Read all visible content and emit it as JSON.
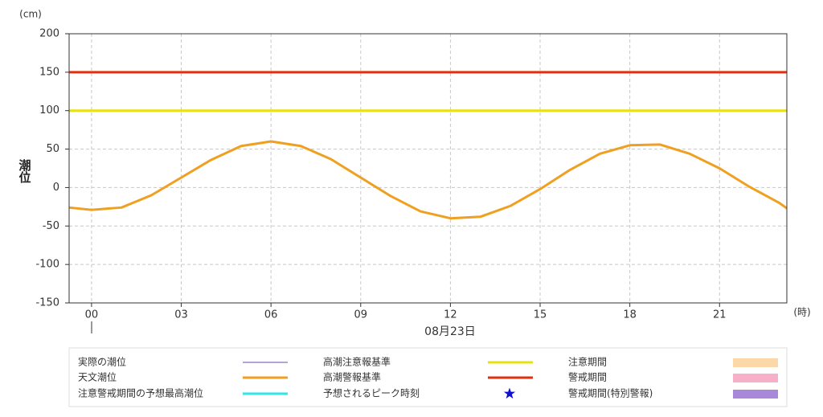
{
  "chart_data": {
    "type": "line",
    "ylabel": "潮位",
    "yunit": "(cm)",
    "xunit": "(時)",
    "date_label": "08月23日",
    "xlim": [
      -0.75,
      23.25
    ],
    "xticks": [
      {
        "value": 0,
        "label": "00"
      },
      {
        "value": 3,
        "label": "03"
      },
      {
        "value": 6,
        "label": "06"
      },
      {
        "value": 9,
        "label": "09"
      },
      {
        "value": 12,
        "label": "12"
      },
      {
        "value": 15,
        "label": "15"
      },
      {
        "value": 18,
        "label": "18"
      },
      {
        "value": 21,
        "label": "21"
      }
    ],
    "ylim": [
      -150,
      200
    ],
    "yticks": [
      200,
      150,
      100,
      50,
      0,
      -50,
      -100,
      -150
    ],
    "grid": true,
    "x": [
      -0.75,
      0,
      1,
      2,
      3,
      4,
      5,
      6,
      7,
      8,
      9,
      10,
      11,
      12,
      13,
      14,
      15,
      16,
      17,
      18,
      19,
      20,
      21,
      22,
      23,
      23.25
    ],
    "series": [
      {
        "color": "#f0a020",
        "values": [
          -26,
          -29,
          -26,
          -10,
          13,
          36,
          54,
          60,
          54,
          37,
          13,
          -11,
          -31,
          -40,
          -38,
          -24,
          -2,
          23,
          44,
          55,
          56,
          44,
          25,
          1,
          -20,
          -27
        ]
      }
    ],
    "thresholds": [
      {
        "color": "#e8e010",
        "value": 100
      },
      {
        "color": "#e03010",
        "value": 150
      }
    ],
    "legend": [
      {
        "label": "実際の潮位",
        "color": "#9b86c5",
        "symbol": "line"
      },
      {
        "label": "天文潮位",
        "color": "#f0a020",
        "symbol": "thick"
      },
      {
        "label": "注意警戒期間の予想最高潮位",
        "color": "#2ee6e6",
        "symbol": "thick"
      },
      {
        "label": "高潮注意報基準",
        "color": "#e8e010",
        "symbol": "thick"
      },
      {
        "label": "高潮警報基準",
        "color": "#e03010",
        "symbol": "thick"
      },
      {
        "label": "予想されるピーク時刻",
        "color": "#1010d0",
        "symbol": "star"
      },
      {
        "label": "注意期間",
        "color": "#fcd8a8",
        "symbol": "rect"
      },
      {
        "label": "警戒期間",
        "color": "#f8b0c8",
        "symbol": "rect"
      },
      {
        "label": "警戒期間(特別警報)",
        "color": "#a888d8",
        "symbol": "rect"
      }
    ]
  }
}
